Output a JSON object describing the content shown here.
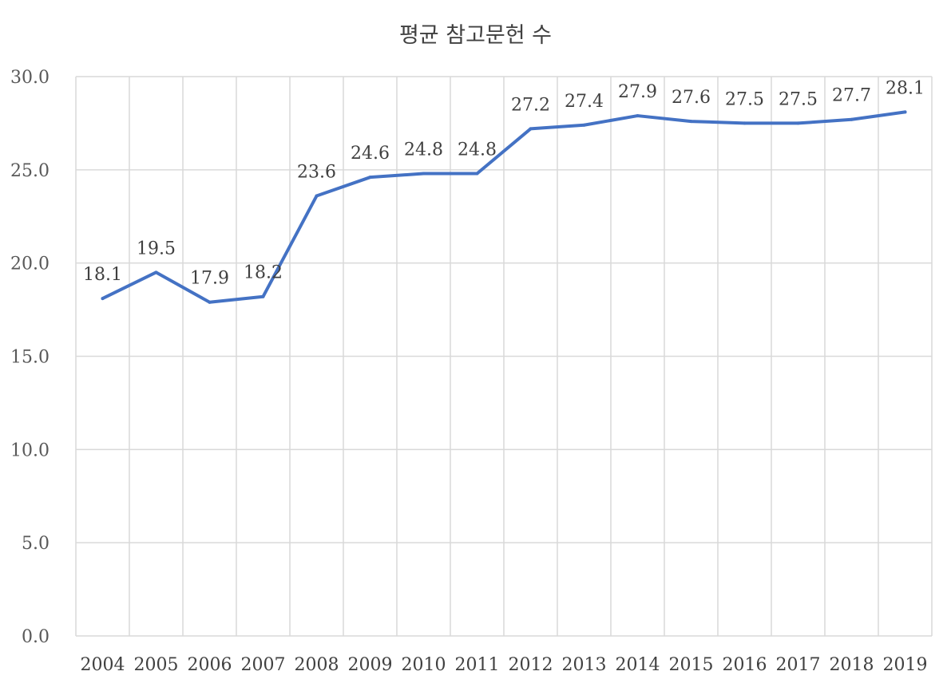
{
  "chart_data": {
    "type": "line",
    "title": "평균 참고문헌 수",
    "xlabel": "",
    "ylabel": "",
    "categories": [
      "2004",
      "2005",
      "2006",
      "2007",
      "2008",
      "2009",
      "2010",
      "2011",
      "2012",
      "2013",
      "2014",
      "2015",
      "2016",
      "2017",
      "2018",
      "2019"
    ],
    "series": [
      {
        "values": [
          18.1,
          19.5,
          17.9,
          18.2,
          23.6,
          24.6,
          24.8,
          24.8,
          27.2,
          27.4,
          27.9,
          27.6,
          27.5,
          27.5,
          27.7,
          28.1
        ],
        "color": "#4472c4"
      }
    ],
    "data_labels": [
      "18.1",
      "19.5",
      "17.9",
      "18.2",
      "23.6",
      "24.6",
      "24.8",
      "24.8",
      "27.2",
      "27.4",
      "27.9",
      "27.6",
      "27.5",
      "27.5",
      "27.7",
      "28.1"
    ],
    "y_ticks": [
      "0.0",
      "5.0",
      "10.0",
      "15.0",
      "20.0",
      "25.0",
      "30.0"
    ],
    "ylim": [
      0,
      30
    ],
    "grid": true,
    "legend": "none"
  }
}
